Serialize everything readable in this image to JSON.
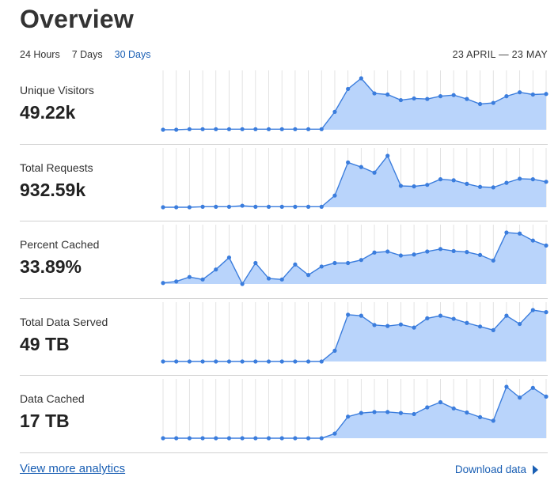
{
  "page": {
    "title": "Overview"
  },
  "range_tabs": [
    {
      "label": "24 Hours",
      "active": false
    },
    {
      "label": "7 Days",
      "active": false
    },
    {
      "label": "30 Days",
      "active": true
    }
  ],
  "date_range": "23 APRIL — 23 MAY",
  "colors": {
    "accent": "#1a5fb4",
    "line": "#3b7ddd",
    "fill": "#b9d4fb",
    "grid": "#dcdcdc"
  },
  "metrics": [
    {
      "label": "Unique Visitors",
      "value": "49.22k"
    },
    {
      "label": "Total Requests",
      "value": "932.59k"
    },
    {
      "label": "Percent Cached",
      "value": "33.89%"
    },
    {
      "label": "Total Data Served",
      "value": "49 TB"
    },
    {
      "label": "Data Cached",
      "value": "17 TB"
    }
  ],
  "chart_data": [
    {
      "type": "area",
      "metric": "Unique Visitors",
      "values": [
        0,
        0,
        1,
        1,
        1,
        1,
        1,
        1,
        1,
        1,
        1,
        1,
        1,
        32,
        73,
        92,
        65,
        63,
        53,
        56,
        55,
        60,
        62,
        55,
        46,
        48,
        60,
        67,
        63,
        64
      ]
    },
    {
      "type": "area",
      "metric": "Total Requests",
      "values": [
        0,
        0,
        0,
        1,
        1,
        1,
        3,
        1,
        1,
        1,
        1,
        1,
        1,
        23,
        88,
        79,
        68,
        101,
        42,
        41,
        44,
        55,
        53,
        46,
        40,
        39,
        48,
        56,
        55,
        50
      ]
    },
    {
      "type": "area",
      "metric": "Percent Cached",
      "values": [
        2,
        5,
        14,
        9,
        29,
        53,
        0,
        42,
        11,
        9,
        39,
        18,
        35,
        42,
        42,
        48,
        63,
        65,
        57,
        59,
        65,
        70,
        66,
        64,
        58,
        47,
        103,
        101,
        87,
        77
      ]
    },
    {
      "type": "area",
      "metric": "Total Data Served",
      "values": [
        0,
        0,
        0,
        0,
        0,
        0,
        0,
        0,
        0,
        0,
        0,
        0,
        0,
        21,
        91,
        89,
        71,
        69,
        72,
        66,
        84,
        89,
        83,
        75,
        68,
        61,
        89,
        73,
        100,
        96
      ]
    },
    {
      "type": "area",
      "metric": "Data Cached",
      "values": [
        0,
        0,
        0,
        0,
        0,
        0,
        0,
        0,
        0,
        0,
        0,
        0,
        0,
        9,
        42,
        49,
        51,
        51,
        49,
        47,
        60,
        70,
        58,
        50,
        41,
        34,
        100,
        79,
        98,
        81
      ]
    }
  ],
  "footer": {
    "view_more_label": "View more analytics",
    "download_label": "Download data",
    "download_icon": "play-triangle-icon"
  }
}
